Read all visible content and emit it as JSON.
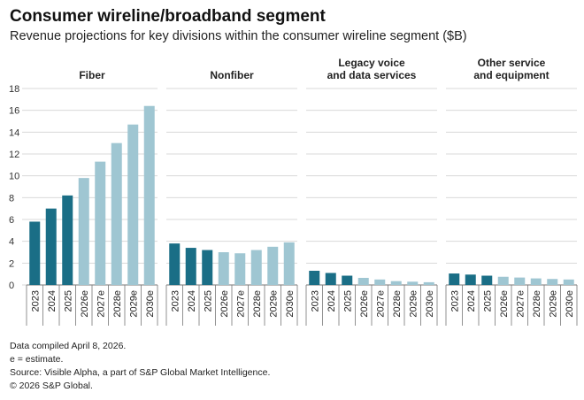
{
  "header": {
    "title": "Consumer wireline/broadband segment",
    "subtitle": "Revenue projections for key divisions within the consumer wireline segment ($B)"
  },
  "colors": {
    "actual": "#1a6e86",
    "estimate": "#9fc6d2",
    "gridline": "#d9d9d9",
    "axis": "#777777"
  },
  "chart_data": {
    "type": "bar",
    "ylim": [
      0,
      18
    ],
    "yticks": [
      0,
      2,
      4,
      6,
      8,
      10,
      12,
      14,
      16,
      18
    ],
    "categories": [
      "2023",
      "2024",
      "2025",
      "2026e",
      "2027e",
      "2028e",
      "2029e",
      "2030e"
    ],
    "actual_count": 3,
    "panels": [
      {
        "title": [
          "Fiber"
        ],
        "values": [
          5.8,
          7.0,
          8.2,
          9.8,
          11.3,
          13.0,
          14.7,
          16.4
        ]
      },
      {
        "title": [
          "Nonfiber"
        ],
        "values": [
          3.8,
          3.4,
          3.2,
          3.0,
          2.9,
          3.2,
          3.5,
          3.9
        ]
      },
      {
        "title": [
          "Legacy voice",
          "and data services"
        ],
        "values": [
          1.3,
          1.1,
          0.85,
          0.65,
          0.5,
          0.35,
          0.3,
          0.25
        ]
      },
      {
        "title": [
          "Other service",
          "and equipment"
        ],
        "values": [
          1.05,
          0.95,
          0.85,
          0.75,
          0.68,
          0.6,
          0.55,
          0.5
        ]
      }
    ]
  },
  "notes": {
    "compiled": "Data compiled April 8, 2026.",
    "estimate": "e = estimate.",
    "source": "Source: Visible Alpha, a part of S&P Global Market Intelligence.",
    "copyright": "© 2026 S&P Global."
  }
}
